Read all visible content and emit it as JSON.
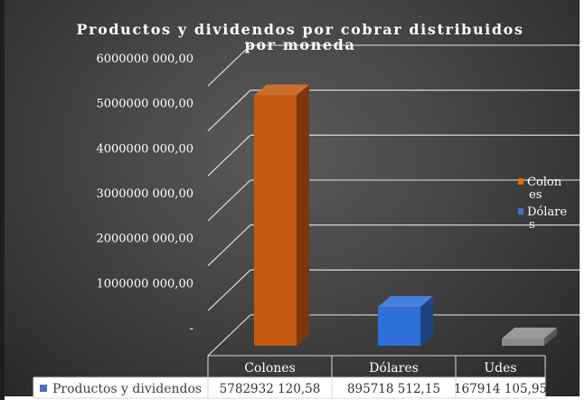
{
  "chart_data": {
    "type": "bar",
    "title": "Productos y dividendos por cobrar distribuidos por moneda",
    "title_lines": [
      "Productos y dividendos por cobrar distribuidos",
      "por moneda"
    ],
    "categories": [
      "Colones",
      "Dólares",
      "Udes"
    ],
    "series": [
      {
        "name": "Productos y dividendos",
        "values": [
          5782932120.58,
          895718512.15,
          167914105.95
        ],
        "value_labels": [
          "5782932 120,58",
          "895718 512,15",
          "167914 105,95"
        ],
        "point_colors": [
          "#c55a11",
          "#2e6fd8",
          "#8c8c8c"
        ]
      }
    ],
    "ylim": [
      0,
      6000000000
    ],
    "yticks": [
      0,
      1000000000,
      2000000000,
      3000000000,
      4000000000,
      5000000000,
      6000000000
    ],
    "ytick_labels": [
      "-",
      "1000000 000,00",
      "2000000 000,00",
      "3000000 000,00",
      "4000000 000,00",
      "5000000 000,00",
      "6000000 000,00"
    ],
    "legend": {
      "placement": "right",
      "entries": [
        {
          "lines": [
            "Colon",
            "es"
          ],
          "color": "#e36c0a"
        },
        {
          "lines": [
            "Dólare",
            "s"
          ],
          "color": "#4472c4"
        }
      ]
    },
    "data_table": true,
    "style_3d": true,
    "grid": true,
    "colors": {
      "title": "#ffffff",
      "text": "#ffffff",
      "grid": "#e6e6e6",
      "table_header_bg": "#ffffff",
      "table_header_text": "#404040",
      "table_text": "#333333",
      "table_key": "#4472c4"
    }
  }
}
